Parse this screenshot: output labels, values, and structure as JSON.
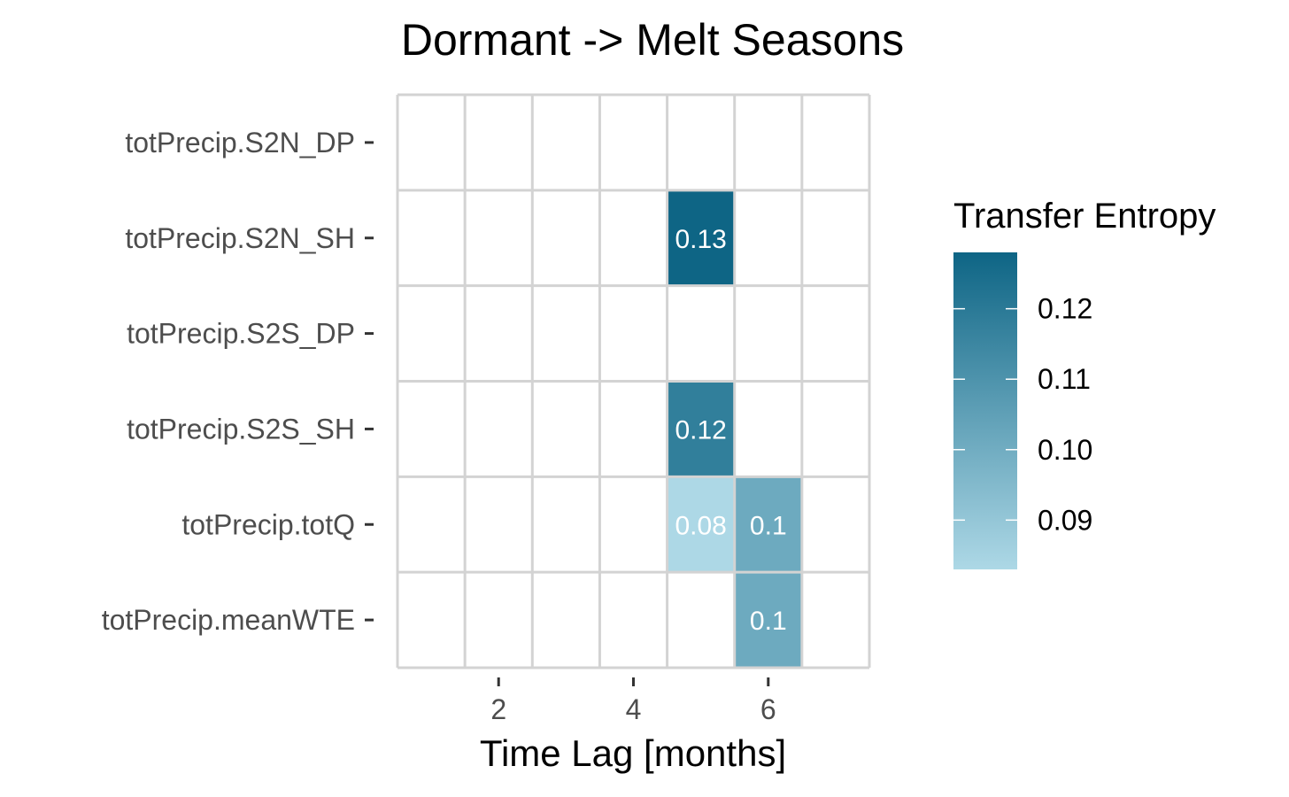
{
  "chart_data": {
    "type": "heatmap",
    "title": "Dormant -> Melt Seasons",
    "xlabel": "Time Lag [months]",
    "ylabel": "",
    "x": [
      1,
      2,
      3,
      4,
      5,
      6,
      7
    ],
    "x_tick_labels": [
      "2",
      "4",
      "6"
    ],
    "x_tick_values": [
      2,
      4,
      6
    ],
    "xlim": [
      0.5,
      7.5
    ],
    "y_categories": [
      "totPrecip.S2N_DP",
      "totPrecip.S2N_SH",
      "totPrecip.S2S_DP",
      "totPrecip.S2S_SH",
      "totPrecip.totQ",
      "totPrecip.meanWTE"
    ],
    "cells": [
      {
        "y": "totPrecip.S2N_SH",
        "x": 5,
        "value": 0.128,
        "label": "0.13"
      },
      {
        "y": "totPrecip.S2S_SH",
        "x": 5,
        "value": 0.118,
        "label": "0.12"
      },
      {
        "y": "totPrecip.totQ",
        "x": 5,
        "value": 0.083,
        "label": "0.08"
      },
      {
        "y": "totPrecip.totQ",
        "x": 6,
        "value": 0.101,
        "label": "0.1"
      },
      {
        "y": "totPrecip.meanWTE",
        "x": 6,
        "value": 0.101,
        "label": "0.1"
      }
    ],
    "grid": true,
    "legend": {
      "title": "Transfer Entropy",
      "placement": "right",
      "range": [
        0.083,
        0.128
      ],
      "ticks": [
        0.09,
        0.1,
        0.11,
        0.12
      ],
      "tick_labels": [
        "0.09",
        "0.10",
        "0.11",
        "0.12"
      ],
      "low_color": "#add8e6",
      "high_color": "#0e6585"
    },
    "grid_color": "#d3d3d3"
  }
}
